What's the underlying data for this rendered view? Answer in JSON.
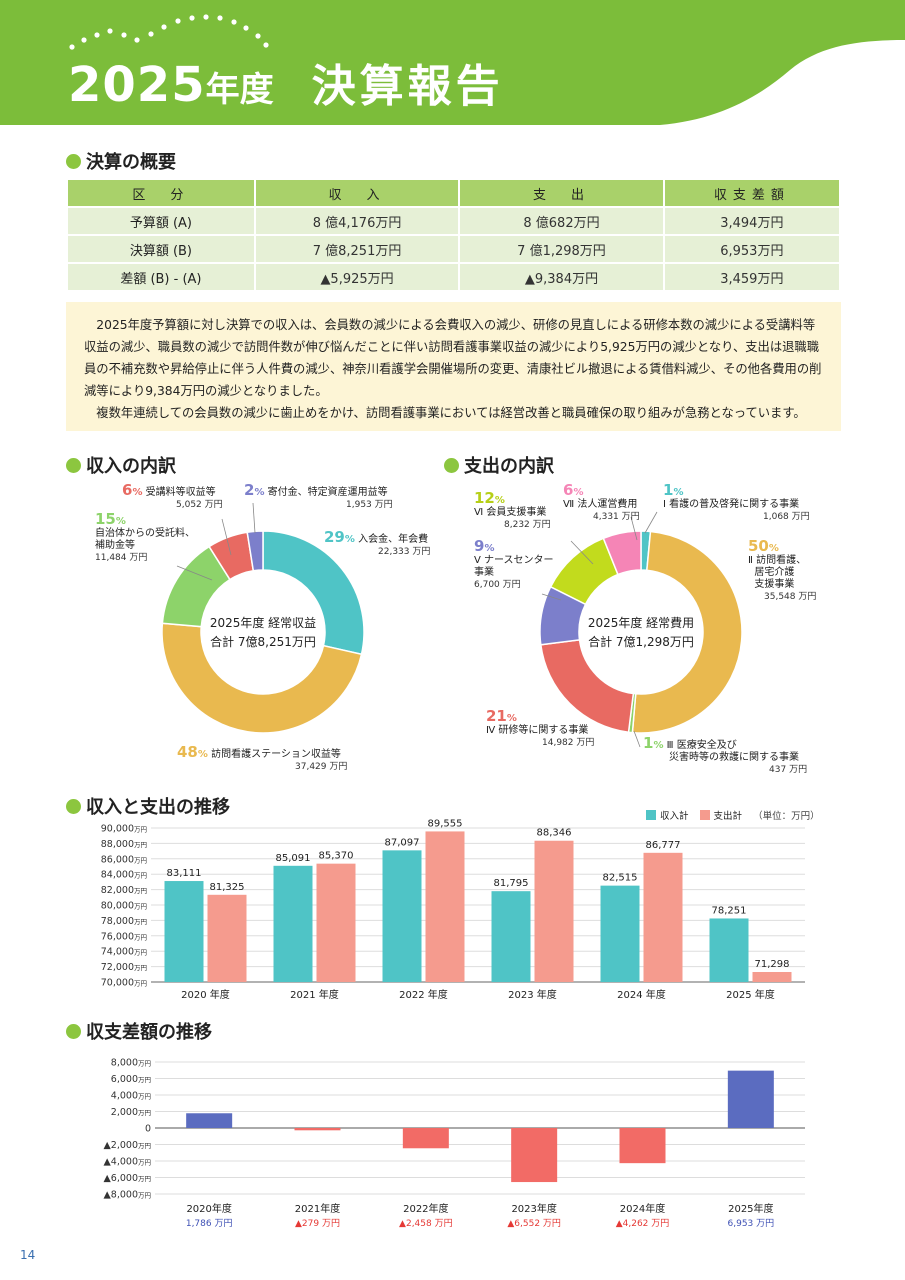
{
  "header": {
    "year": "2025",
    "nendo": "年度",
    "title": "決算報告"
  },
  "colors": {
    "header_green": "#7cbd3a",
    "accent_green": "#8cc63f",
    "income_teal": "#4fc4c6",
    "expense_salmon": "#f59b8e",
    "diff_positive": "#5b6cc0",
    "diff_negative": "#f26b66"
  },
  "sections": {
    "summary": "決算の概要",
    "income_breakdown": "収入の内訳",
    "expense_breakdown": "支出の内訳",
    "trend": "収入と支出の推移",
    "balance_trend": "収支差額の推移"
  },
  "summary_table": {
    "headers": [
      "区　分",
      "収　入",
      "支　出",
      "収支差額"
    ],
    "rows": [
      [
        "予算額 (A)",
        "8 億4,176万円",
        "8 億682万円",
        "3,494万円"
      ],
      [
        "決算額 (B)",
        "7 億8,251万円",
        "7 億1,298万円",
        "6,953万円"
      ],
      [
        "差額 (B) - (A)",
        "▲5,925万円",
        "▲9,384万円",
        "3,459万円"
      ]
    ]
  },
  "note": {
    "p1": "2025年度予算額に対し決算での収入は、会員数の減少による会費収入の減少、研修の見直しによる研修本数の減少による受講料等収益の減少、職員数の減少で訪問件数が伸び悩んだことに伴い訪問看護事業収益の減少により5,925万円の減少となり、支出は退職職員の不補充数や昇給停止に伴う人件費の減少、神奈川看護学会開催場所の変更、清康社ビル撤退による賃借料減少、その他各費用の削減等により9,384万円の減少となりました。",
    "p2": "複数年連続しての会員数の減少に歯止めをかけ、訪問看護事業においては経営改善と職員確保の取り組みが急務となっています。"
  },
  "income_center": {
    "line1": "2025年度 経常収益",
    "line2": "合計 7億8,251万円"
  },
  "expense_center": {
    "line1": "2025年度 経常費用",
    "line2": "合計 7億1,298万円"
  },
  "pct_sign": "%",
  "unit_man": "万円",
  "unit_label": "（単位：万円）",
  "chart_data": [
    {
      "type": "pie",
      "title": "収入の内訳",
      "slices": [
        {
          "label": "入会金、年会費",
          "pct": "29",
          "amount": "22,333",
          "value": 22333,
          "color": "#4fc4c6"
        },
        {
          "label": "訪問看護ステーション収益等",
          "pct": "48",
          "amount": "37,429",
          "value": 37429,
          "color": "#e9b94f"
        },
        {
          "label": "自治体からの受託料、補助金等",
          "pct": "15",
          "amount": "11,484",
          "value": 11484,
          "color": "#8dd36a"
        },
        {
          "label": "受講料等収益等",
          "pct": "6",
          "amount": "5,052",
          "value": 5052,
          "color": "#e86a62"
        },
        {
          "label": "寄付金、特定資産運用益等",
          "pct": "2",
          "amount": "1,953",
          "value": 1953,
          "color": "#7c7fcb"
        }
      ]
    },
    {
      "type": "pie",
      "title": "支出の内訳",
      "slices": [
        {
          "label": "Ⅰ 看護の普及啓発に関する事業",
          "pct": "1",
          "amount": "1,068",
          "value": 1068,
          "color": "#4fc4c6"
        },
        {
          "label": "Ⅱ 訪問看護、居宅介護支援事業",
          "pct": "50",
          "amount": "35,548",
          "value": 35548,
          "color": "#e9b94f"
        },
        {
          "label": "Ⅲ 医療安全及び災害時等の救護に関する事業",
          "pct": "1",
          "amount": "437",
          "value": 437,
          "color": "#8dd36a"
        },
        {
          "label": "Ⅳ 研修等に関する事業",
          "pct": "21",
          "amount": "14,982",
          "value": 14982,
          "color": "#e86a62"
        },
        {
          "label": "Ⅴ ナースセンター事業",
          "pct": "9",
          "amount": "6,700",
          "value": 6700,
          "color": "#7c7fcb"
        },
        {
          "label": "Ⅵ 会員支援事業",
          "pct": "12",
          "amount": "8,232",
          "value": 8232,
          "color": "#c2db1d"
        },
        {
          "label": "Ⅶ 法人運営費用",
          "pct": "6",
          "amount": "4,331",
          "value": 4331,
          "color": "#f585b6"
        }
      ]
    },
    {
      "type": "bar",
      "title": "収入と支出の推移",
      "categories": [
        "2020 年度",
        "2021 年度",
        "2022 年度",
        "2023 年度",
        "2024 年度",
        "2025 年度"
      ],
      "ylim": [
        70000,
        90000
      ],
      "yticks": [
        "90,000",
        "88,000",
        "86,000",
        "84,000",
        "82,000",
        "80,000",
        "78,000",
        "76,000",
        "74,000",
        "72,000",
        "70,000"
      ],
      "series": [
        {
          "name": "収入計",
          "values": [
            83111,
            85091,
            87097,
            81795,
            82515,
            78251
          ],
          "labels": [
            "83,111",
            "85,091",
            "87,097",
            "81,795",
            "82,515",
            "78,251"
          ],
          "color": "#4fc4c6"
        },
        {
          "name": "支出計",
          "values": [
            81325,
            85370,
            89555,
            88346,
            86777,
            71298
          ],
          "labels": [
            "81,325",
            "85,370",
            "89,555",
            "88,346",
            "86,777",
            "71,298"
          ],
          "color": "#f59b8e"
        }
      ]
    },
    {
      "type": "bar",
      "title": "収支差額の推移",
      "categories": [
        "2020年度",
        "2021年度",
        "2022年度",
        "2023年度",
        "2024年度",
        "2025年度"
      ],
      "ylim": [
        -8000,
        8000
      ],
      "yticks": [
        "8,000",
        "6,000",
        "4,000",
        "2,000",
        "0",
        "▲2,000",
        "▲4,000",
        "▲6,000",
        "▲8,000"
      ],
      "values": [
        1786,
        -279,
        -2458,
        -6552,
        -4262,
        6953
      ],
      "labels": [
        "1,786",
        "▲279",
        "▲2,458",
        "▲6,552",
        "▲4,262",
        "6,953"
      ]
    }
  ]
}
